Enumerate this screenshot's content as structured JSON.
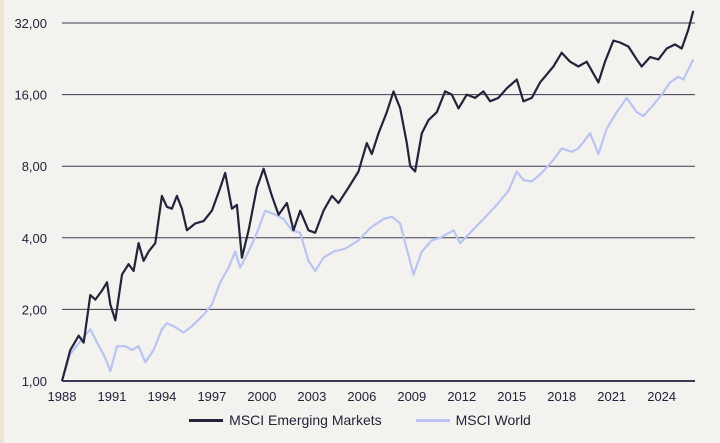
{
  "chart_data": {
    "type": "line",
    "title": "",
    "xlabel": "",
    "ylabel": "",
    "yscale": "log2",
    "ylim": [
      1,
      32
    ],
    "xlim": [
      1988,
      2026
    ],
    "grid": true,
    "legend_position": "bottom",
    "y_ticks": [
      1,
      2,
      4,
      8,
      16,
      32
    ],
    "y_tick_labels": [
      "1,00",
      "2,00",
      "4,00",
      "8,00",
      "16,00",
      "32,00"
    ],
    "x_ticks": [
      1988,
      1991,
      1994,
      1997,
      2000,
      2003,
      2006,
      2009,
      2012,
      2015,
      2018,
      2021,
      2024
    ],
    "x_tick_labels": [
      "1988",
      "1991",
      "1994",
      "1997",
      "2000",
      "2003",
      "2006",
      "2009",
      "2012",
      "2015",
      "2018",
      "2021",
      "2024"
    ],
    "series": [
      {
        "name": "MSCI Emerging Markets",
        "color": "#23233a",
        "x": [
          1988.0,
          1988.5,
          1989.0,
          1989.3,
          1989.7,
          1990.0,
          1990.4,
          1990.7,
          1990.9,
          1991.2,
          1991.6,
          1992.0,
          1992.3,
          1992.6,
          1992.9,
          1993.2,
          1993.6,
          1994.0,
          1994.3,
          1994.6,
          1994.9,
          1995.2,
          1995.5,
          1996.0,
          1996.5,
          1997.0,
          1997.5,
          1997.8,
          1998.2,
          1998.5,
          1998.8,
          1999.2,
          1999.7,
          2000.1,
          2000.6,
          2001.0,
          2001.5,
          2001.9,
          2002.3,
          2002.8,
          2003.2,
          2003.7,
          2004.2,
          2004.6,
          2005.2,
          2005.8,
          2006.3,
          2006.6,
          2007.0,
          2007.5,
          2007.9,
          2008.3,
          2008.7,
          2008.9,
          2009.2,
          2009.6,
          2010.0,
          2010.5,
          2011.0,
          2011.4,
          2011.8,
          2012.3,
          2012.8,
          2013.3,
          2013.7,
          2014.2,
          2014.7,
          2015.3,
          2015.7,
          2016.2,
          2016.7,
          2017.5,
          2018.0,
          2018.5,
          2019.0,
          2019.5,
          2020.2,
          2020.6,
          2021.1,
          2021.5,
          2022.0,
          2022.5,
          2022.8,
          2023.3,
          2023.8,
          2024.3,
          2024.8,
          2025.2,
          2025.6,
          2025.9
        ],
        "values": [
          1.0,
          1.35,
          1.55,
          1.45,
          2.3,
          2.2,
          2.4,
          2.6,
          2.1,
          1.8,
          2.8,
          3.1,
          2.9,
          3.8,
          3.2,
          3.5,
          3.8,
          6.0,
          5.4,
          5.3,
          6.0,
          5.3,
          4.3,
          4.6,
          4.7,
          5.2,
          6.5,
          7.5,
          5.3,
          5.5,
          3.3,
          4.3,
          6.5,
          7.8,
          6.0,
          5.0,
          5.6,
          4.3,
          5.2,
          4.3,
          4.2,
          5.2,
          6.0,
          5.6,
          6.5,
          7.6,
          10,
          9,
          11,
          13.5,
          16.5,
          14,
          10,
          8,
          7.6,
          11,
          12.5,
          13.5,
          16.5,
          16,
          14,
          16,
          15.5,
          16.5,
          15,
          15.5,
          17,
          18.5,
          15,
          15.5,
          18,
          21,
          24,
          22,
          21,
          22,
          18,
          22,
          27,
          26.5,
          25.5,
          22.5,
          21,
          23,
          22.5,
          25,
          26,
          25,
          30,
          36
        ]
      },
      {
        "name": "MSCI World",
        "color": "#b9c4f5",
        "x": [
          1988.0,
          1988.5,
          1989.2,
          1989.7,
          1990.0,
          1990.6,
          1990.9,
          1991.3,
          1991.8,
          1992.2,
          1992.6,
          1993.0,
          1993.5,
          1994.0,
          1994.3,
          1994.7,
          1995.3,
          1995.8,
          1996.5,
          1997.0,
          1997.5,
          1998.0,
          1998.4,
          1998.7,
          1999.2,
          1999.7,
          2000.2,
          2000.8,
          2001.3,
          2001.8,
          2002.3,
          2002.8,
          2003.2,
          2003.7,
          2004.3,
          2005.0,
          2005.8,
          2006.5,
          2007.3,
          2007.8,
          2008.3,
          2008.6,
          2009.1,
          2009.6,
          2010.2,
          2010.7,
          2011.5,
          2011.9,
          2012.5,
          2013.3,
          2014.0,
          2014.8,
          2015.3,
          2015.7,
          2016.2,
          2016.8,
          2017.5,
          2018.0,
          2018.6,
          2019.0,
          2019.7,
          2020.2,
          2020.7,
          2021.3,
          2021.9,
          2022.5,
          2022.9,
          2023.5,
          2024.0,
          2024.5,
          2025.0,
          2025.3,
          2025.9
        ],
        "values": [
          1.0,
          1.3,
          1.5,
          1.65,
          1.5,
          1.25,
          1.1,
          1.4,
          1.4,
          1.35,
          1.4,
          1.2,
          1.35,
          1.65,
          1.75,
          1.7,
          1.6,
          1.7,
          1.9,
          2.1,
          2.6,
          3.0,
          3.5,
          3.0,
          3.5,
          4.2,
          5.2,
          5.0,
          4.8,
          4.3,
          4.2,
          3.2,
          2.9,
          3.3,
          3.5,
          3.6,
          3.9,
          4.4,
          4.8,
          4.9,
          4.6,
          3.8,
          2.8,
          3.5,
          3.9,
          4.0,
          4.3,
          3.8,
          4.2,
          4.8,
          5.4,
          6.3,
          7.6,
          7.0,
          6.9,
          7.5,
          8.5,
          9.5,
          9.2,
          9.5,
          11,
          9.0,
          11.5,
          13.5,
          15.5,
          13.5,
          13.0,
          14.5,
          16,
          18,
          19,
          18.5,
          22.5
        ]
      }
    ]
  }
}
